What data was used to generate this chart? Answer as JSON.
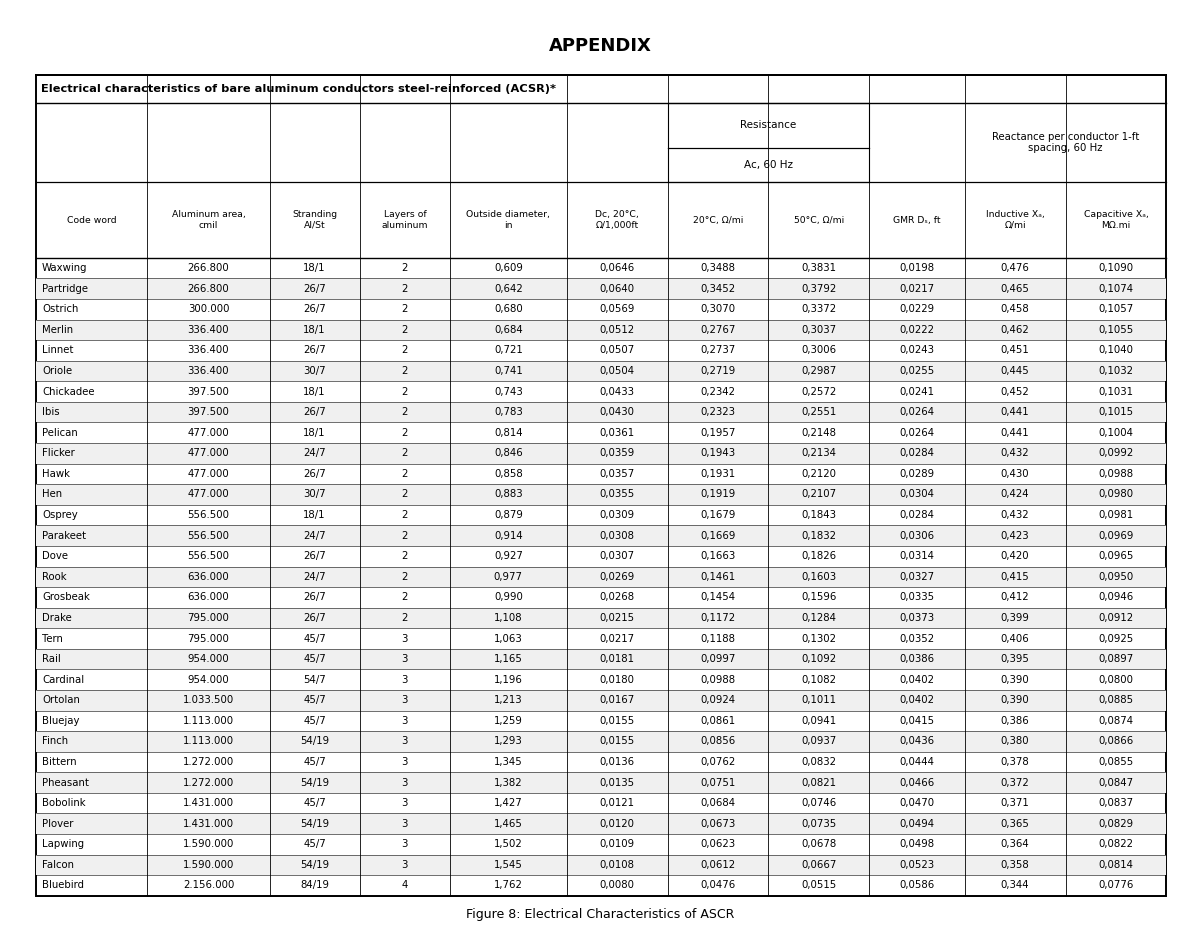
{
  "title": "APPENDIX",
  "subtitle": "Electrical characteristics of bare aluminum conductors steel-reinforced (ACSR)*",
  "figure_caption": "Figure 8: Electrical Characteristics of ASCR",
  "resistance_header": "Resistance",
  "ac_header": "Ac, 60 Hz",
  "reactance_header": "Reactance per conductor 1-ft\nspacing, 60 Hz",
  "col_labels": [
    "Code word",
    "Aluminum area,\ncmil",
    "Stranding\nAl/St",
    "Layers of\naluminum",
    "Outside diameter,\nin",
    "Dc, 20°C,\nΩ/1,000ft",
    "20°C, Ω/mi",
    "50°C, Ω/mi",
    "GMR Dₛ, ft",
    "Inductive Xₐ,\nΩ/mi",
    "Capacitive Xₐ,\nMΩ.mi"
  ],
  "rows": [
    [
      "Waxwing",
      "266.800",
      "18/1",
      "2",
      "0,609",
      "0,0646",
      "0,3488",
      "0,3831",
      "0,0198",
      "0,476",
      "0,1090"
    ],
    [
      "Partridge",
      "266.800",
      "26/7",
      "2",
      "0,642",
      "0,0640",
      "0,3452",
      "0,3792",
      "0,0217",
      "0,465",
      "0,1074"
    ],
    [
      "Ostrich",
      "300.000",
      "26/7",
      "2",
      "0,680",
      "0,0569",
      "0,3070",
      "0,3372",
      "0,0229",
      "0,458",
      "0,1057"
    ],
    [
      "Merlin",
      "336.400",
      "18/1",
      "2",
      "0,684",
      "0,0512",
      "0,2767",
      "0,3037",
      "0,0222",
      "0,462",
      "0,1055"
    ],
    [
      "Linnet",
      "336.400",
      "26/7",
      "2",
      "0,721",
      "0,0507",
      "0,2737",
      "0,3006",
      "0,0243",
      "0,451",
      "0,1040"
    ],
    [
      "Oriole",
      "336.400",
      "30/7",
      "2",
      "0,741",
      "0,0504",
      "0,2719",
      "0,2987",
      "0,0255",
      "0,445",
      "0,1032"
    ],
    [
      "Chickadee",
      "397.500",
      "18/1",
      "2",
      "0,743",
      "0,0433",
      "0,2342",
      "0,2572",
      "0,0241",
      "0,452",
      "0,1031"
    ],
    [
      "Ibis",
      "397.500",
      "26/7",
      "2",
      "0,783",
      "0,0430",
      "0,2323",
      "0,2551",
      "0,0264",
      "0,441",
      "0,1015"
    ],
    [
      "Pelican",
      "477.000",
      "18/1",
      "2",
      "0,814",
      "0,0361",
      "0,1957",
      "0,2148",
      "0,0264",
      "0,441",
      "0,1004"
    ],
    [
      "Flicker",
      "477.000",
      "24/7",
      "2",
      "0,846",
      "0,0359",
      "0,1943",
      "0,2134",
      "0,0284",
      "0,432",
      "0,0992"
    ],
    [
      "Hawk",
      "477.000",
      "26/7",
      "2",
      "0,858",
      "0,0357",
      "0,1931",
      "0,2120",
      "0,0289",
      "0,430",
      "0,0988"
    ],
    [
      "Hen",
      "477.000",
      "30/7",
      "2",
      "0,883",
      "0,0355",
      "0,1919",
      "0,2107",
      "0,0304",
      "0,424",
      "0,0980"
    ],
    [
      "Osprey",
      "556.500",
      "18/1",
      "2",
      "0,879",
      "0,0309",
      "0,1679",
      "0,1843",
      "0,0284",
      "0,432",
      "0,0981"
    ],
    [
      "Parakeet",
      "556.500",
      "24/7",
      "2",
      "0,914",
      "0,0308",
      "0,1669",
      "0,1832",
      "0,0306",
      "0,423",
      "0,0969"
    ],
    [
      "Dove",
      "556.500",
      "26/7",
      "2",
      "0,927",
      "0,0307",
      "0,1663",
      "0,1826",
      "0,0314",
      "0,420",
      "0,0965"
    ],
    [
      "Rook",
      "636.000",
      "24/7",
      "2",
      "0,977",
      "0,0269",
      "0,1461",
      "0,1603",
      "0,0327",
      "0,415",
      "0,0950"
    ],
    [
      "Grosbeak",
      "636.000",
      "26/7",
      "2",
      "0,990",
      "0,0268",
      "0,1454",
      "0,1596",
      "0,0335",
      "0,412",
      "0,0946"
    ],
    [
      "Drake",
      "795.000",
      "26/7",
      "2",
      "1,108",
      "0,0215",
      "0,1172",
      "0,1284",
      "0,0373",
      "0,399",
      "0,0912"
    ],
    [
      "Tern",
      "795.000",
      "45/7",
      "3",
      "1,063",
      "0,0217",
      "0,1188",
      "0,1302",
      "0,0352",
      "0,406",
      "0,0925"
    ],
    [
      "Rail",
      "954.000",
      "45/7",
      "3",
      "1,165",
      "0,0181",
      "0,0997",
      "0,1092",
      "0,0386",
      "0,395",
      "0,0897"
    ],
    [
      "Cardinal",
      "954.000",
      "54/7",
      "3",
      "1,196",
      "0,0180",
      "0,0988",
      "0,1082",
      "0,0402",
      "0,390",
      "0,0800"
    ],
    [
      "Ortolan",
      "1.033.500",
      "45/7",
      "3",
      "1,213",
      "0,0167",
      "0,0924",
      "0,1011",
      "0,0402",
      "0,390",
      "0,0885"
    ],
    [
      "Bluejay",
      "1.113.000",
      "45/7",
      "3",
      "1,259",
      "0,0155",
      "0,0861",
      "0,0941",
      "0,0415",
      "0,386",
      "0,0874"
    ],
    [
      "Finch",
      "1.113.000",
      "54/19",
      "3",
      "1,293",
      "0,0155",
      "0,0856",
      "0,0937",
      "0,0436",
      "0,380",
      "0,0866"
    ],
    [
      "Bittern",
      "1.272.000",
      "45/7",
      "3",
      "1,345",
      "0,0136",
      "0,0762",
      "0,0832",
      "0,0444",
      "0,378",
      "0,0855"
    ],
    [
      "Pheasant",
      "1.272.000",
      "54/19",
      "3",
      "1,382",
      "0,0135",
      "0,0751",
      "0,0821",
      "0,0466",
      "0,372",
      "0,0847"
    ],
    [
      "Bobolink",
      "1.431.000",
      "45/7",
      "3",
      "1,427",
      "0,0121",
      "0,0684",
      "0,0746",
      "0,0470",
      "0,371",
      "0,0837"
    ],
    [
      "Plover",
      "1.431.000",
      "54/19",
      "3",
      "1,465",
      "0,0120",
      "0,0673",
      "0,0735",
      "0,0494",
      "0,365",
      "0,0829"
    ],
    [
      "Lapwing",
      "1.590.000",
      "45/7",
      "3",
      "1,502",
      "0,0109",
      "0,0623",
      "0,0678",
      "0,0498",
      "0,364",
      "0,0822"
    ],
    [
      "Falcon",
      "1.590.000",
      "54/19",
      "3",
      "1,545",
      "0,0108",
      "0,0612",
      "0,0667",
      "0,0523",
      "0,358",
      "0,0814"
    ],
    [
      "Bluebird",
      "2.156.000",
      "84/19",
      "4",
      "1,762",
      "0,0080",
      "0,0476",
      "0,0515",
      "0,0586",
      "0,344",
      "0,0776"
    ]
  ],
  "col_widths_rel": [
    1.05,
    1.15,
    0.85,
    0.85,
    1.1,
    0.95,
    0.95,
    0.95,
    0.9,
    0.95,
    0.95
  ],
  "background_color": "#ffffff",
  "border_color": "#000000",
  "text_color": "#000000"
}
